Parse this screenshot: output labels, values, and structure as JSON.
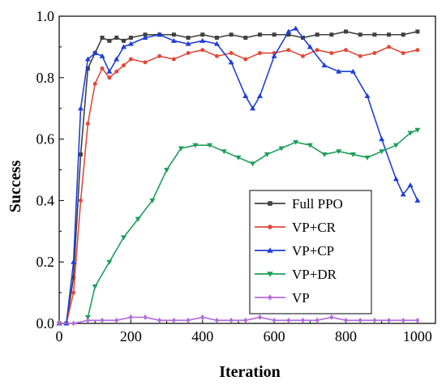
{
  "chart_data": {
    "type": "line",
    "xlabel": "Iteration",
    "ylabel": "Success",
    "xlim": [
      0,
      1050
    ],
    "ylim": [
      0,
      1.0
    ],
    "x_ticks": [
      0,
      200,
      400,
      600,
      800,
      1000
    ],
    "y_ticks": [
      0.0,
      0.2,
      0.4,
      0.6,
      0.8,
      1.0
    ],
    "x_tick_labels": [
      "0",
      "200",
      "400",
      "600",
      "800",
      "1000"
    ],
    "y_tick_labels": [
      "0.0",
      "0.2",
      "0.4",
      "0.6",
      "0.8",
      "1.0"
    ],
    "legend": {
      "placement": "right"
    },
    "series": [
      {
        "name": "Full PPO",
        "color": "#404040",
        "marker": "square",
        "x": [
          0,
          20,
          40,
          60,
          80,
          100,
          120,
          140,
          160,
          180,
          200,
          240,
          280,
          320,
          360,
          400,
          440,
          480,
          520,
          560,
          600,
          640,
          680,
          720,
          760,
          800,
          840,
          880,
          920,
          960,
          1000
        ],
        "y": [
          0.0,
          0.0,
          0.15,
          0.55,
          0.83,
          0.88,
          0.93,
          0.92,
          0.93,
          0.92,
          0.93,
          0.94,
          0.94,
          0.94,
          0.93,
          0.94,
          0.93,
          0.94,
          0.93,
          0.94,
          0.94,
          0.94,
          0.93,
          0.94,
          0.94,
          0.95,
          0.94,
          0.94,
          0.94,
          0.94,
          0.95
        ]
      },
      {
        "name": "VP+CR",
        "color": "#e04a3a",
        "marker": "circle",
        "x": [
          0,
          20,
          40,
          60,
          80,
          100,
          120,
          140,
          160,
          180,
          200,
          240,
          280,
          320,
          360,
          400,
          440,
          480,
          520,
          560,
          600,
          640,
          680,
          720,
          760,
          800,
          840,
          880,
          920,
          960,
          1000
        ],
        "y": [
          0.0,
          0.0,
          0.1,
          0.4,
          0.65,
          0.78,
          0.83,
          0.8,
          0.82,
          0.84,
          0.86,
          0.85,
          0.87,
          0.86,
          0.88,
          0.89,
          0.87,
          0.88,
          0.86,
          0.88,
          0.88,
          0.89,
          0.87,
          0.89,
          0.88,
          0.89,
          0.87,
          0.88,
          0.9,
          0.88,
          0.89
        ]
      },
      {
        "name": "VP+CP",
        "color": "#1f3fd8",
        "marker": "triangle-up",
        "x": [
          0,
          20,
          40,
          60,
          80,
          100,
          120,
          140,
          160,
          180,
          200,
          240,
          280,
          320,
          360,
          400,
          440,
          480,
          520,
          540,
          560,
          600,
          640,
          660,
          700,
          740,
          780,
          820,
          860,
          900,
          940,
          960,
          980,
          1000
        ],
        "y": [
          0.0,
          0.0,
          0.2,
          0.7,
          0.86,
          0.88,
          0.87,
          0.82,
          0.86,
          0.9,
          0.91,
          0.93,
          0.94,
          0.92,
          0.91,
          0.92,
          0.91,
          0.85,
          0.74,
          0.7,
          0.74,
          0.87,
          0.95,
          0.96,
          0.9,
          0.84,
          0.82,
          0.82,
          0.74,
          0.6,
          0.47,
          0.42,
          0.45,
          0.4
        ]
      },
      {
        "name": "VP+DR",
        "color": "#1f9e5a",
        "marker": "triangle-down",
        "x": [
          80,
          100,
          140,
          180,
          220,
          260,
          300,
          340,
          380,
          420,
          460,
          500,
          540,
          580,
          620,
          660,
          700,
          740,
          780,
          820,
          860,
          900,
          940,
          980,
          1000
        ],
        "y": [
          0.02,
          0.12,
          0.2,
          0.28,
          0.34,
          0.4,
          0.5,
          0.57,
          0.58,
          0.58,
          0.56,
          0.54,
          0.52,
          0.55,
          0.57,
          0.59,
          0.58,
          0.55,
          0.56,
          0.55,
          0.54,
          0.56,
          0.58,
          0.62,
          0.63
        ]
      },
      {
        "name": "VP",
        "color": "#b26bdb",
        "marker": "diamond",
        "x": [
          0,
          40,
          80,
          120,
          160,
          200,
          240,
          280,
          320,
          360,
          400,
          440,
          480,
          520,
          560,
          600,
          640,
          680,
          720,
          760,
          800,
          840,
          880,
          920,
          960,
          1000
        ],
        "y": [
          0.0,
          0.0,
          0.01,
          0.01,
          0.01,
          0.02,
          0.02,
          0.01,
          0.01,
          0.01,
          0.02,
          0.01,
          0.01,
          0.01,
          0.02,
          0.01,
          0.01,
          0.01,
          0.01,
          0.02,
          0.01,
          0.01,
          0.01,
          0.01,
          0.01,
          0.01
        ]
      }
    ]
  }
}
